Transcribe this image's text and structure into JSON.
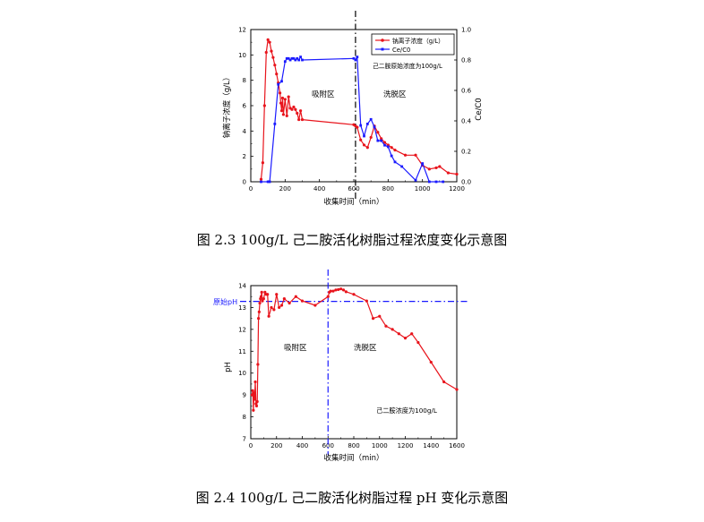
{
  "chart_data": [
    {
      "type": "line",
      "caption": "图 2.3 100g/L 己二胺活化树脂过程浓度变化示意图",
      "xlabel": "收集时间（min）",
      "ylabel": "钠离子浓度（g/L）",
      "y2label": "Ce/C0",
      "xlim": [
        0,
        1200
      ],
      "ylim": [
        0,
        12
      ],
      "y2lim": [
        0,
        1.0
      ],
      "xticks": [
        "0",
        "200",
        "400",
        "600",
        "800",
        "1000",
        "1200"
      ],
      "yticks": [
        "0",
        "2",
        "4",
        "6",
        "8",
        "10",
        "12"
      ],
      "y2ticks": [
        "0.0",
        "0.2",
        "0.4",
        "0.6",
        "0.8",
        "1.0"
      ],
      "vline_x": 610,
      "grid": false,
      "legend_position": "top-right",
      "annotations": {
        "adsorb": "吸附区",
        "wash": "洗脱区",
        "note": "己二胺原始浓度为100g/L"
      },
      "series": [
        {
          "name": "钠离子浓度（g/L）",
          "axis": "left",
          "color": "#e8141c",
          "x": [
            60,
            70,
            80,
            90,
            100,
            110,
            120,
            130,
            140,
            150,
            160,
            170,
            175,
            180,
            185,
            190,
            200,
            210,
            220,
            230,
            240,
            250,
            260,
            270,
            280,
            290,
            300,
            600,
            610,
            620,
            640,
            660,
            680,
            700,
            720,
            740,
            760,
            780,
            800,
            820,
            840,
            900,
            960,
            1000,
            1040,
            1080,
            1100,
            1150,
            1200
          ],
          "y": [
            0.2,
            1.5,
            6.0,
            10.2,
            11.2,
            11.0,
            10.3,
            9.8,
            9.2,
            8.5,
            7.8,
            7.0,
            6.2,
            5.6,
            6.6,
            5.3,
            6.5,
            5.2,
            6.7,
            5.8,
            5.7,
            5.9,
            5.7,
            5.4,
            4.9,
            5.6,
            4.9,
            4.5,
            4.4,
            4.3,
            3.3,
            2.9,
            2.7,
            3.5,
            4.4,
            3.9,
            3.4,
            3.1,
            2.9,
            2.7,
            2.5,
            2.1,
            2.1,
            1.3,
            1.0,
            1.1,
            1.2,
            0.7,
            0.6
          ]
        },
        {
          "name": "Ce/C0",
          "axis": "right",
          "color": "#1a1aff",
          "x": [
            60,
            100,
            110,
            140,
            160,
            180,
            200,
            210,
            220,
            230,
            240,
            250,
            260,
            270,
            280,
            290,
            300,
            600,
            610,
            620,
            640,
            660,
            680,
            700,
            720,
            740,
            760,
            780,
            800,
            820,
            840,
            880,
            960,
            1000,
            1040,
            1080,
            1120
          ],
          "y": [
            0.0,
            0.0,
            0.0,
            0.38,
            0.64,
            0.66,
            0.79,
            0.81,
            0.81,
            0.8,
            0.81,
            0.81,
            0.8,
            0.81,
            0.8,
            0.82,
            0.8,
            0.81,
            0.8,
            0.82,
            0.37,
            0.3,
            0.38,
            0.41,
            0.36,
            0.27,
            0.27,
            0.24,
            0.23,
            0.17,
            0.13,
            0.1,
            0.01,
            0.12,
            0.0,
            0.0,
            0.0
          ]
        }
      ]
    },
    {
      "type": "line",
      "caption": "图 2.4 100g/L 己二胺活化树脂过程 pH 变化示意图",
      "xlabel": "收集时间（min）",
      "ylabel": "pH",
      "xlim": [
        0,
        1600
      ],
      "ylim": [
        7,
        14
      ],
      "xticks": [
        "0",
        "200",
        "400",
        "600",
        "800",
        "1000",
        "1200",
        "1400",
        "1600"
      ],
      "yticks": [
        "7",
        "8",
        "9",
        "10",
        "11",
        "12",
        "13",
        "14"
      ],
      "vline_x": 600,
      "hline_y": 13.28,
      "hline_label": "原始pH",
      "grid": false,
      "annotations": {
        "adsorb": "吸附区",
        "wash": "洗脱区",
        "note": "己二胺浓度为100g/L"
      },
      "series": [
        {
          "name": "pH",
          "color": "#e8141c",
          "x": [
            10,
            15,
            20,
            25,
            30,
            35,
            40,
            45,
            50,
            55,
            60,
            65,
            70,
            75,
            80,
            85,
            90,
            100,
            110,
            120,
            130,
            140,
            160,
            180,
            200,
            220,
            240,
            260,
            300,
            350,
            400,
            500,
            600,
            610,
            620,
            640,
            660,
            680,
            700,
            720,
            740,
            800,
            900,
            950,
            1000,
            1050,
            1100,
            1150,
            1200,
            1250,
            1300,
            1400,
            1500,
            1600
          ],
          "y": [
            9.0,
            9.2,
            8.3,
            9.1,
            8.8,
            9.6,
            8.6,
            8.5,
            8.7,
            10.4,
            12.5,
            12.8,
            13.2,
            13.4,
            13.5,
            13.7,
            13.3,
            13.4,
            13.7,
            13.6,
            13.6,
            12.6,
            13.0,
            12.9,
            13.6,
            13.0,
            13.1,
            13.4,
            13.2,
            13.5,
            13.3,
            13.1,
            13.5,
            13.7,
            13.75,
            13.75,
            13.8,
            13.82,
            13.85,
            13.8,
            13.72,
            13.6,
            13.3,
            12.5,
            12.6,
            12.15,
            12.0,
            11.8,
            11.6,
            11.8,
            11.4,
            10.5,
            9.6,
            9.25
          ]
        }
      ]
    }
  ]
}
